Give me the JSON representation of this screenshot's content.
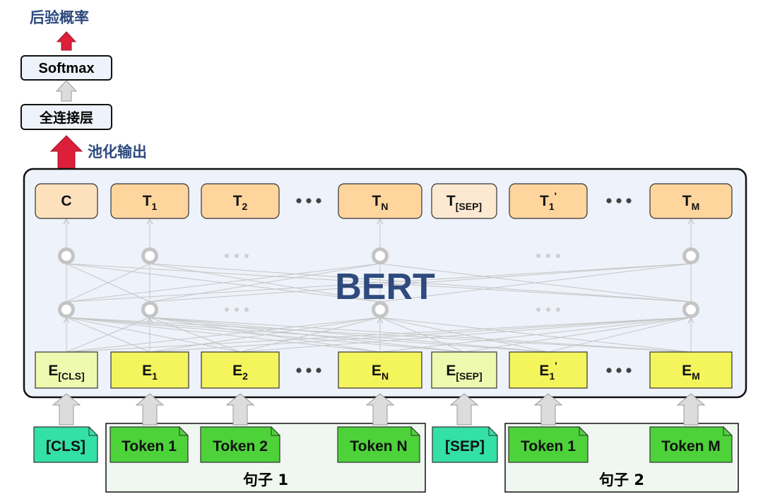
{
  "colors": {
    "title_text": "#2e4a7e",
    "bert_fill": "#eef2fa",
    "output_fill": "#ffd59e",
    "cls_output_fill": "#fde0bc",
    "sep_output_fill": "#fde9d2",
    "embed_fill": "#f4f55c",
    "cls_embed_fill": "#eef9b0",
    "token_fill": "#4dd23a",
    "special_token_fill": "#33e0a6",
    "group_fill": "#f0f7f1",
    "red_arrow": "#dd1f3a",
    "gray_arrow": "#dcdcdc",
    "node": "#c4c4c4",
    "ellipsis": "#444444",
    "faint_ellipsis": "#cfcfcf"
  },
  "top": {
    "posterior_label": "后验概率",
    "softmax_label": "Softmax",
    "fc_label": "全连接层",
    "pooling_label": "池化输出"
  },
  "bert": {
    "label": "BERT"
  },
  "outputs": [
    {
      "main": "C",
      "sub": "",
      "prime": ""
    },
    {
      "main": "T",
      "sub": "1",
      "prime": ""
    },
    {
      "main": "T",
      "sub": "2",
      "prime": ""
    },
    {
      "main": "T",
      "sub": "N",
      "prime": ""
    },
    {
      "main": "T",
      "sub": "[SEP]",
      "prime": ""
    },
    {
      "main": "T",
      "sub": "1",
      "prime": "'"
    },
    {
      "main": "T",
      "sub": "M",
      "prime": ""
    }
  ],
  "embeddings": [
    {
      "main": "E",
      "sub": "[CLS]",
      "prime": ""
    },
    {
      "main": "E",
      "sub": "1",
      "prime": ""
    },
    {
      "main": "E",
      "sub": "2",
      "prime": ""
    },
    {
      "main": "E",
      "sub": "N",
      "prime": ""
    },
    {
      "main": "E",
      "sub": "[SEP]",
      "prime": ""
    },
    {
      "main": "E",
      "sub": "1",
      "prime": "'"
    },
    {
      "main": "E",
      "sub": "M",
      "prime": ""
    }
  ],
  "tokens": [
    {
      "label": "[CLS]"
    },
    {
      "label": "Token 1"
    },
    {
      "label": "Token 2"
    },
    {
      "label": "Token N"
    },
    {
      "label": "[SEP]"
    },
    {
      "label": "Token 1"
    },
    {
      "label": "Token M"
    }
  ],
  "groups": [
    {
      "label": "句子 1"
    },
    {
      "label": "句子 2"
    }
  ]
}
